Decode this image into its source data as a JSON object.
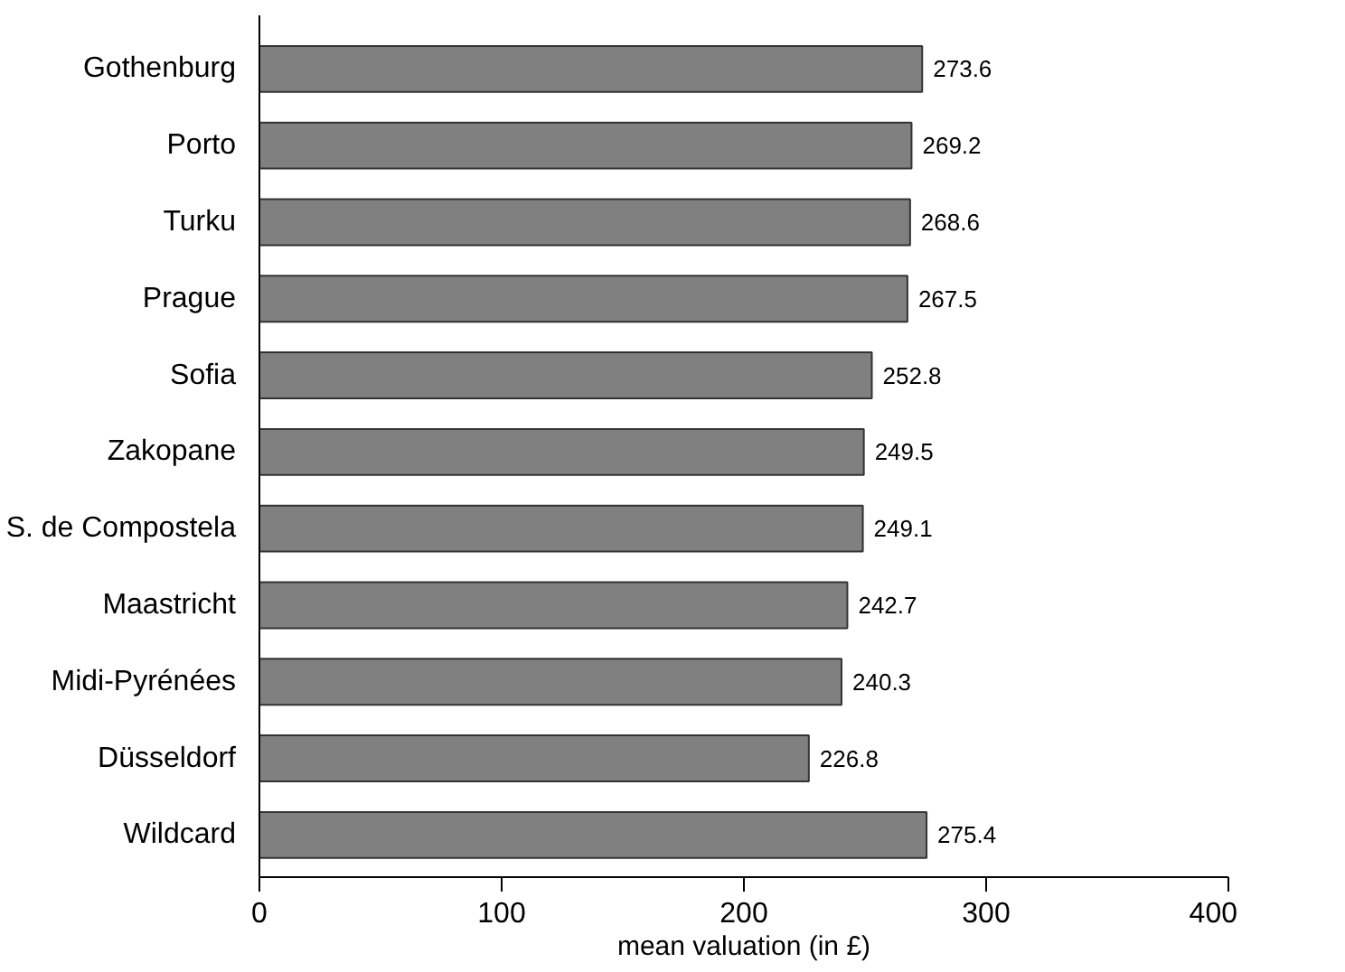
{
  "chart_data": {
    "type": "bar",
    "orientation": "horizontal",
    "xlabel": "mean valuation (in £)",
    "categories": [
      "Gothenburg",
      "Porto",
      "Turku",
      "Prague",
      "Sofia",
      "Zakopane",
      "S. de Compostela",
      "Maastricht",
      "Midi-Pyrénées",
      "Düsseldorf",
      "Wildcard"
    ],
    "values": [
      273.6,
      269.2,
      268.6,
      267.5,
      252.8,
      249.5,
      249.1,
      242.7,
      240.3,
      226.8,
      275.4
    ],
    "color": "#808080",
    "xlim": [
      0,
      400
    ],
    "xticks": [
      0,
      100,
      200,
      300,
      400
    ],
    "data_labels": true
  }
}
